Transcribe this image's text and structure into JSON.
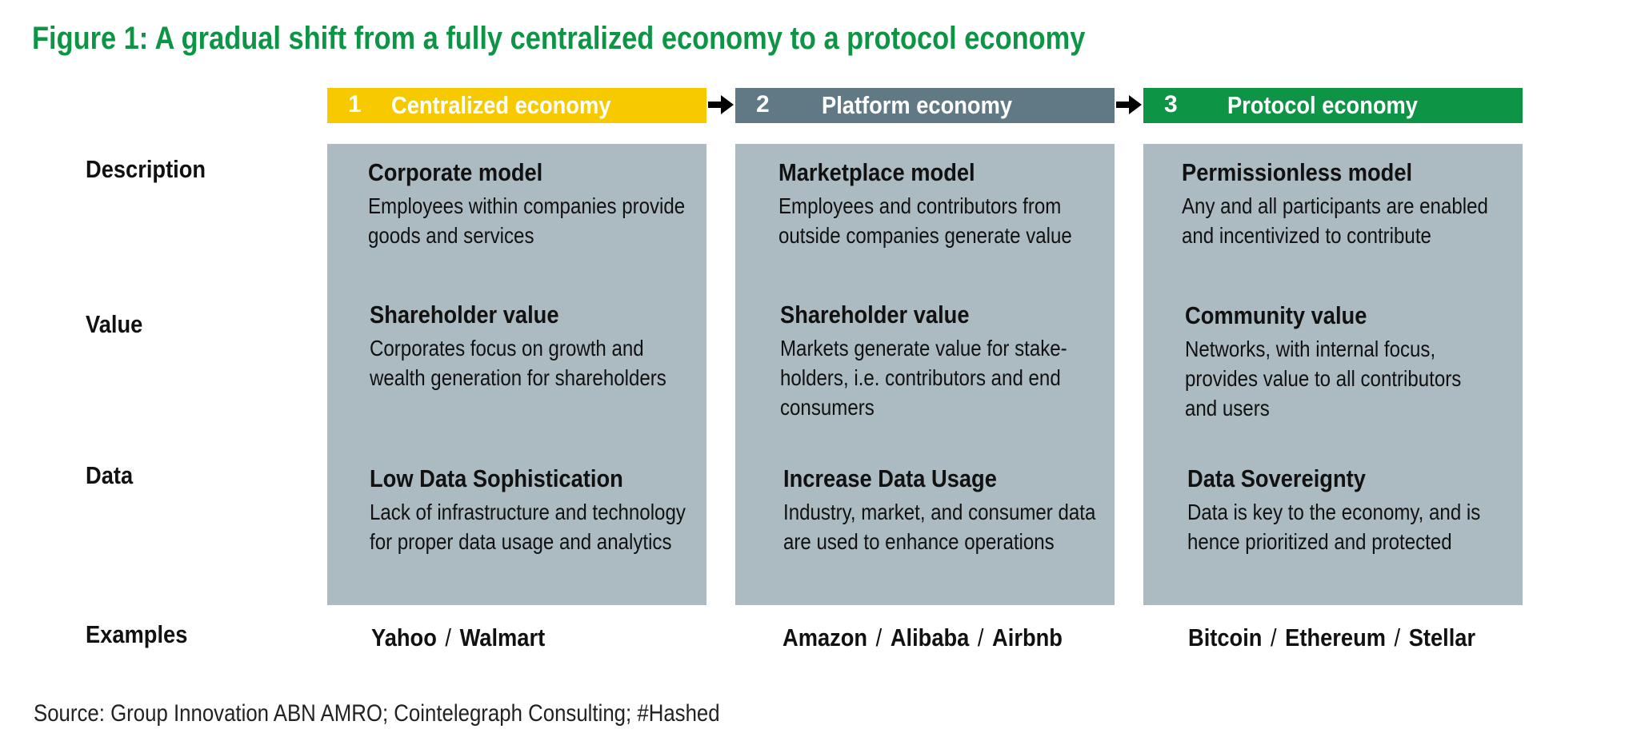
{
  "title": "Figure 1: A gradual shift from a fully centralized economy to a protocol economy",
  "colors": {
    "stage1": "#f7ca00",
    "stage2": "#617984",
    "stage3": "#0e9445",
    "panel": "#abbbc1",
    "title": "#0e9445"
  },
  "stages": [
    {
      "number": "1",
      "label": "Centralized economy"
    },
    {
      "number": "2",
      "label": "Platform economy"
    },
    {
      "number": "3",
      "label": "Protocol economy"
    }
  ],
  "row_labels": [
    "Description",
    "Value",
    "Data",
    "Examples"
  ],
  "cells": [
    {
      "description": {
        "heading": "Corporate model",
        "lines": [
          "Employees within companies provide",
          "goods and services"
        ]
      },
      "value": {
        "heading": "Shareholder value",
        "lines": [
          "Corporates focus on growth and",
          "wealth generation for shareholders"
        ]
      },
      "data": {
        "heading": "Low Data Sophistication",
        "lines": [
          "Lack of infrastructure and technology",
          "for proper data usage and analytics"
        ]
      },
      "examples": [
        "Yahoo",
        "Walmart"
      ]
    },
    {
      "description": {
        "heading": "Marketplace model",
        "lines": [
          "Employees and contributors from",
          "outside companies generate value"
        ]
      },
      "value": {
        "heading": "Shareholder value",
        "lines": [
          "Markets generate value for stake-",
          "holders, i.e. contributors and end",
          "consumers"
        ]
      },
      "data": {
        "heading": "Increase Data Usage",
        "lines": [
          "Industry, market, and consumer data",
          "are used to enhance operations"
        ]
      },
      "examples": [
        "Amazon",
        "Alibaba",
        "Airbnb"
      ]
    },
    {
      "description": {
        "heading": "Permissionless model",
        "lines": [
          "Any and all participants are enabled",
          "and incentivized to contribute"
        ]
      },
      "value": {
        "heading": "Community value",
        "lines": [
          "Networks, with internal focus,",
          "provides value to all contributors",
          "and users"
        ]
      },
      "data": {
        "heading": "Data Sovereignty",
        "lines": [
          "Data is key to the economy, and is",
          "hence prioritized and protected"
        ]
      },
      "examples": [
        "Bitcoin",
        "Ethereum",
        "Stellar"
      ]
    }
  ],
  "examples_separator": "/",
  "source": "Source: Group Innovation ABN AMRO; Cointelegraph Consulting; #Hashed"
}
